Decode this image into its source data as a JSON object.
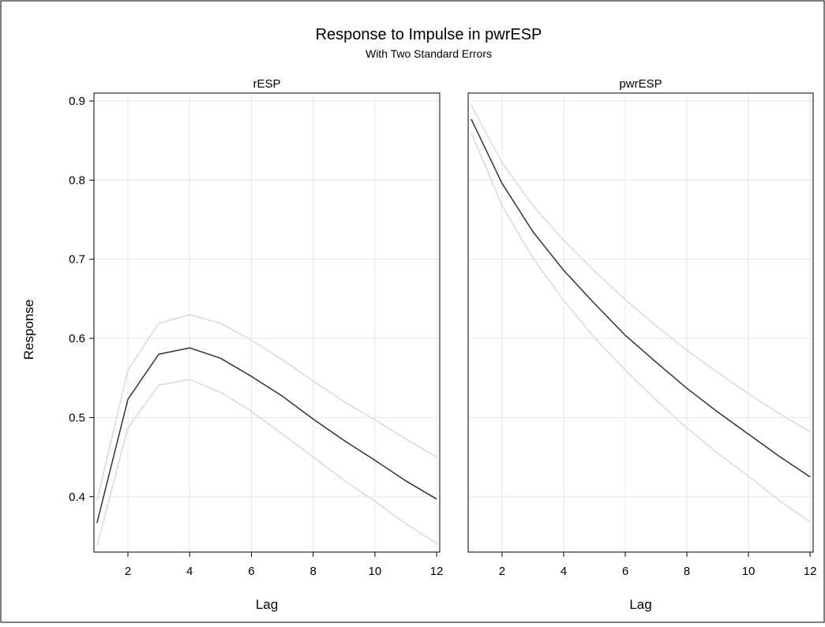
{
  "chart_data": {
    "type": "line",
    "title": "Response to Impulse in pwrESP",
    "subtitle": "With Two Standard Errors",
    "ylabel": "Response",
    "xlabel": "Lag",
    "ylim": [
      0.33,
      0.91
    ],
    "xlim": [
      0.9,
      12.1
    ],
    "yticks": [
      0.4,
      0.5,
      0.6,
      0.7,
      0.8,
      0.9
    ],
    "xticks": [
      2,
      4,
      6,
      8,
      10,
      12
    ],
    "grid": true,
    "colors": {
      "estimate": "#333333",
      "bounds": "#d9d9d9",
      "grid": "#e6e6e6",
      "frame": "#000000"
    },
    "panels": [
      {
        "label": "rESP",
        "x": [
          1,
          2,
          3,
          4,
          5,
          6,
          7,
          8,
          9,
          10,
          11,
          12
        ],
        "series": [
          {
            "role": "upper",
            "values": [
              0.395,
              0.56,
              0.619,
              0.63,
              0.619,
              0.598,
              0.573,
              0.546,
              0.52,
              0.497,
              0.473,
              0.45
            ]
          },
          {
            "role": "estimate",
            "values": [
              0.367,
              0.523,
              0.58,
              0.588,
              0.575,
              0.552,
              0.527,
              0.498,
              0.471,
              0.446,
              0.42,
              0.397
            ]
          },
          {
            "role": "lower",
            "values": [
              0.338,
              0.487,
              0.541,
              0.548,
              0.532,
              0.508,
              0.479,
              0.45,
              0.421,
              0.394,
              0.366,
              0.341
            ]
          }
        ]
      },
      {
        "label": "pwrESP",
        "x": [
          1,
          2,
          3,
          4,
          5,
          6,
          7,
          8,
          9,
          10,
          11,
          12
        ],
        "series": [
          {
            "role": "upper",
            "values": [
              0.895,
              0.822,
              0.768,
              0.724,
              0.685,
              0.649,
              0.616,
              0.585,
              0.557,
              0.53,
              0.505,
              0.482
            ]
          },
          {
            "role": "estimate",
            "values": [
              0.877,
              0.796,
              0.735,
              0.686,
              0.644,
              0.604,
              0.57,
              0.537,
              0.507,
              0.479,
              0.451,
              0.425
            ]
          },
          {
            "role": "lower",
            "values": [
              0.86,
              0.768,
              0.702,
              0.648,
              0.601,
              0.56,
              0.522,
              0.487,
              0.455,
              0.426,
              0.395,
              0.368
            ]
          }
        ]
      }
    ]
  }
}
